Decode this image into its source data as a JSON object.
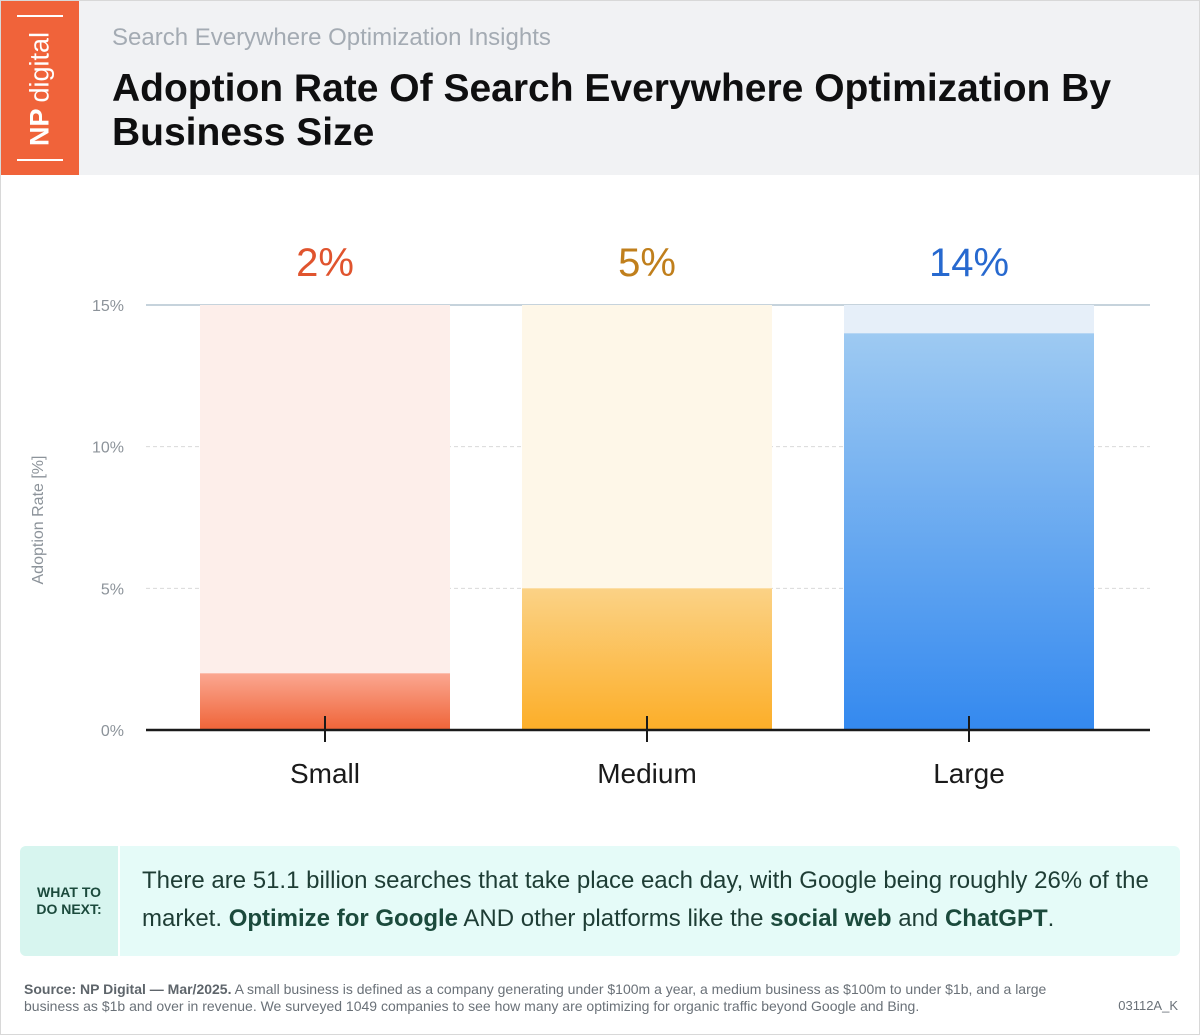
{
  "header": {
    "brand_np": "NP",
    "brand_digital": "digital",
    "subtitle": "Search Everywhere Optimization Insights",
    "title": "Adoption Rate Of Search Everywhere Optimization By Business Size"
  },
  "chart_data": {
    "type": "bar",
    "categories": [
      "Small",
      "Medium",
      "Large"
    ],
    "values": [
      2,
      5,
      14
    ],
    "value_labels": [
      "2%",
      "5%",
      "14%"
    ],
    "ylabel": "Adoption Rate [%]",
    "ylim": [
      0,
      15
    ],
    "yticks": [
      0,
      5,
      10,
      15
    ],
    "ytick_labels": [
      "0%",
      "5%",
      "10%",
      "15%"
    ],
    "grid": true,
    "colors": {
      "Small": {
        "label": "#e0542e",
        "top": "#fba791",
        "bottom": "#ef6438",
        "track": "#fdeeea"
      },
      "Medium": {
        "label": "#c07f1c",
        "top": "#fbd286",
        "bottom": "#fcae28",
        "track": "#fef7e8"
      },
      "Large": {
        "label": "#2769cf",
        "top": "#9ecaf2",
        "bottom": "#3489ef",
        "track": "#e6eff9"
      }
    }
  },
  "callout": {
    "label": "WHAT TO\nDO NEXT:",
    "text_1": "There are 51.1 billion searches that take place each day, with Google being roughly 26% of the market. ",
    "bold_1": "Optimize for Google",
    "text_2": " AND other platforms like the ",
    "bold_2": "social web",
    "text_3": " and ",
    "bold_3": "ChatGPT",
    "text_4": "."
  },
  "footer": {
    "source_bold": "Source: NP Digital — Mar/2025.",
    "source_text": " A small business is defined as a company generating under $100m a year, a medium business as $100m to under $1b, and a large business as $1b and over in revenue. We surveyed 1049 companies to see how many are optimizing for organic traffic beyond Google and Bing.",
    "code": "03112A_K"
  }
}
